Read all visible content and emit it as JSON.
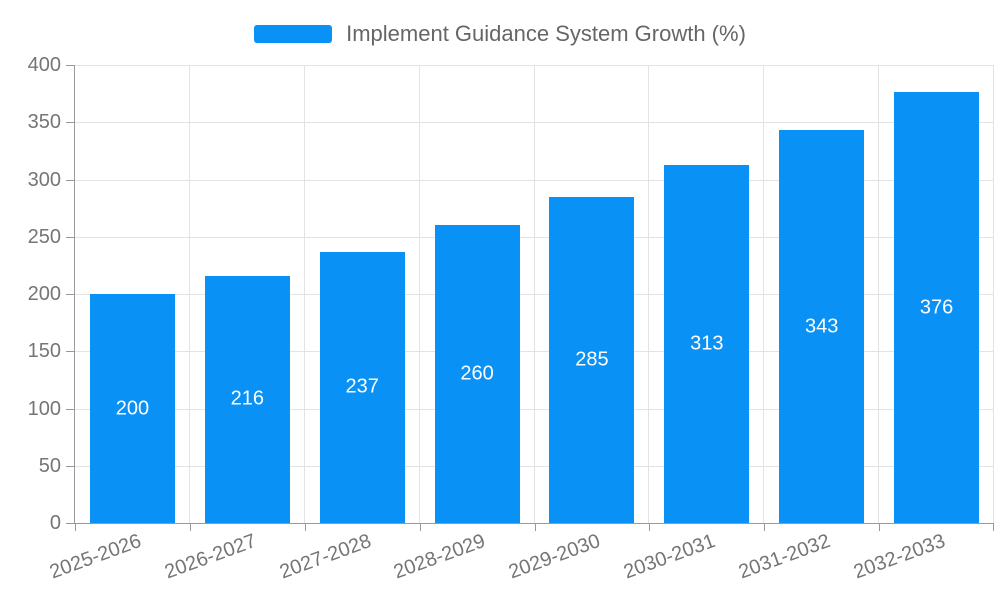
{
  "chart_data": {
    "type": "bar",
    "title": "Implement Guidance System Growth (%)",
    "categories": [
      "2025-2026",
      "2026-2027",
      "2027-2028",
      "2028-2029",
      "2029-2030",
      "2030-2031",
      "2031-2032",
      "2032-2033"
    ],
    "values": [
      200,
      216,
      237,
      260,
      285,
      313,
      343,
      376
    ],
    "series": [
      {
        "name": "Implement Guidance System Growth (%)",
        "values": [
          200,
          216,
          237,
          260,
          285,
          313,
          343,
          376
        ]
      }
    ],
    "xlabel": "",
    "ylabel": "",
    "ylim": [
      0,
      400
    ],
    "yticks": [
      0,
      50,
      100,
      150,
      200,
      250,
      300,
      350,
      400
    ],
    "grid": true,
    "legend_position": "top-center",
    "value_labels": "inside-middle",
    "x_label_rotation_deg": -20
  },
  "colors": {
    "bar": "#0991F5",
    "grid_line": "#E3E3E3",
    "axis_line": "#999999",
    "tick_mark": "#999999",
    "axis_label": "#757575",
    "legend_text": "#666666",
    "value_label": "#FFFFFF",
    "background": "#FFFFFF"
  },
  "legend": {
    "label": "Implement Guidance System Growth (%)"
  }
}
